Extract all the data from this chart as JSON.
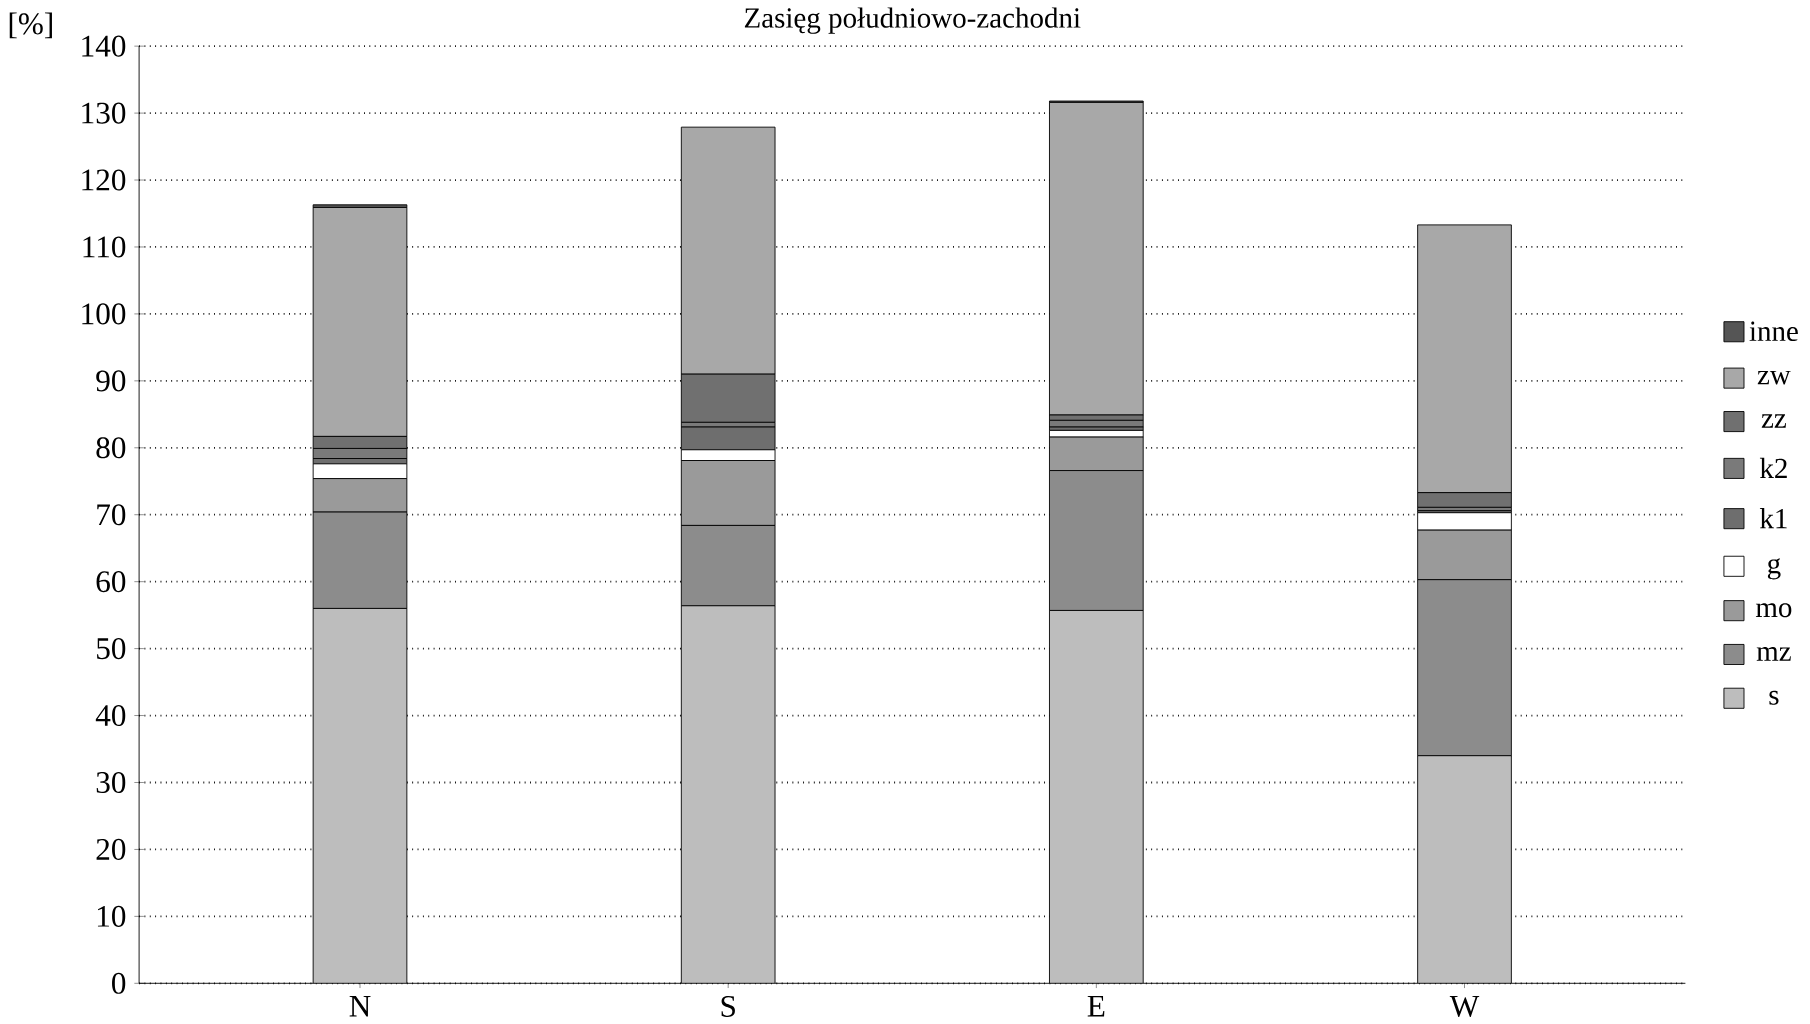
{
  "chart_data": {
    "type": "bar",
    "title": "Zasięg południowo-zachodni",
    "ylabel": "[%]",
    "stacked": true,
    "categories": [
      "N",
      "S",
      "E",
      "W"
    ],
    "series": [
      {
        "name": "s",
        "color": "#bdbdbd",
        "values": [
          56,
          56.4,
          55.7,
          34
        ]
      },
      {
        "name": "mz",
        "color": "#8c8c8c",
        "values": [
          14.4,
          12,
          20.9,
          26.3
        ]
      },
      {
        "name": "mo",
        "color": "#9a9a9a",
        "values": [
          5,
          9.7,
          5,
          7.4
        ]
      },
      {
        "name": "g",
        "color": "#ffffff",
        "values": [
          2.2,
          1.6,
          1,
          2.6
        ]
      },
      {
        "name": "k1",
        "color": "#6e6e6e",
        "values": [
          0.8,
          3.4,
          0.5,
          0.3
        ]
      },
      {
        "name": "k2",
        "color": "#7a7a7a",
        "values": [
          1.5,
          0.7,
          1,
          0.5
        ]
      },
      {
        "name": "zz",
        "color": "#707070",
        "values": [
          1.8,
          7.2,
          0.8,
          2.2
        ]
      },
      {
        "name": "zw",
        "color": "#a8a8a8",
        "values": [
          34.2,
          36.9,
          46.7,
          40
        ]
      },
      {
        "name": "inne",
        "color": "#555555",
        "values": [
          0.4,
          0,
          0.2,
          0
        ]
      }
    ],
    "ylim": [
      0,
      140
    ],
    "yticks": [
      0,
      10,
      20,
      30,
      40,
      50,
      60,
      70,
      80,
      90,
      100,
      110,
      120,
      130,
      140
    ],
    "grid": "y",
    "legend": "right"
  }
}
